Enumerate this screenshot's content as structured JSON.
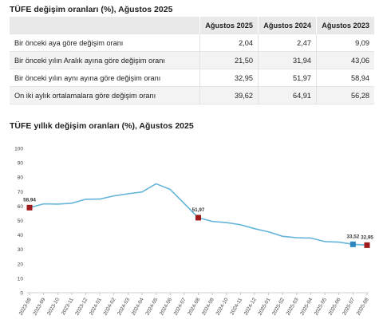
{
  "table": {
    "title": "TÜFE değişim oranları (%), Ağustos 2025",
    "headers": [
      "",
      "Ağustos 2025",
      "Ağustos 2024",
      "Ağustos 2023"
    ],
    "rows": [
      {
        "label": "Bir önceki aya göre değişim oranı",
        "values": [
          "2,04",
          "2,47",
          "9,09"
        ]
      },
      {
        "label": "Bir önceki yılın Aralık ayına göre değişim oranı",
        "values": [
          "21,50",
          "31,94",
          "43,06"
        ]
      },
      {
        "label": "Bir önceki yılın aynı ayına göre değişim oranı",
        "values": [
          "32,95",
          "51,97",
          "58,94"
        ]
      },
      {
        "label": "On iki aylık ortalamalara göre değişim oranı",
        "values": [
          "39,62",
          "64,91",
          "56,28"
        ]
      }
    ]
  },
  "chart_data": {
    "type": "line",
    "title": "TÜFE yıllık değişim oranları (%), Ağustos 2025",
    "categories": [
      "2023-08",
      "2023-09",
      "2023-10",
      "2023-11",
      "2023-12",
      "2024-01",
      "2024-02",
      "2024-03",
      "2024-04",
      "2024-05",
      "2024-06",
      "2024-07",
      "2024-08",
      "2024-09",
      "2024-10",
      "2024-11",
      "2024-12",
      "2025-01",
      "2025-02",
      "2025-03",
      "2025-04",
      "2025-05",
      "2025-06",
      "2025-07",
      "2025-08"
    ],
    "series": [
      {
        "values": [
          58.94,
          61.53,
          61.36,
          61.98,
          64.77,
          64.86,
          67.07,
          68.5,
          69.8,
          75.45,
          71.6,
          61.78,
          51.97,
          49.38,
          48.58,
          47.09,
          44.38,
          42.12,
          39.05,
          38.1,
          37.86,
          35.41,
          35.05,
          33.52,
          32.95
        ],
        "color": "#64b5d9"
      }
    ],
    "ylim": [
      0,
      100
    ],
    "yticks": [
      0,
      10,
      20,
      30,
      40,
      50,
      60,
      70,
      80,
      90,
      100
    ],
    "grid": false,
    "legend": "none",
    "annotations": [
      {
        "index": 0,
        "label": "58,94",
        "color": "#9e1b1b"
      },
      {
        "index": 12,
        "label": "51,97",
        "color": "#9e1b1b"
      },
      {
        "index": 23,
        "label": "33,52",
        "color": "#2e86c1"
      },
      {
        "index": 24,
        "label": "32,95",
        "color": "#9e1b1b"
      }
    ]
  }
}
